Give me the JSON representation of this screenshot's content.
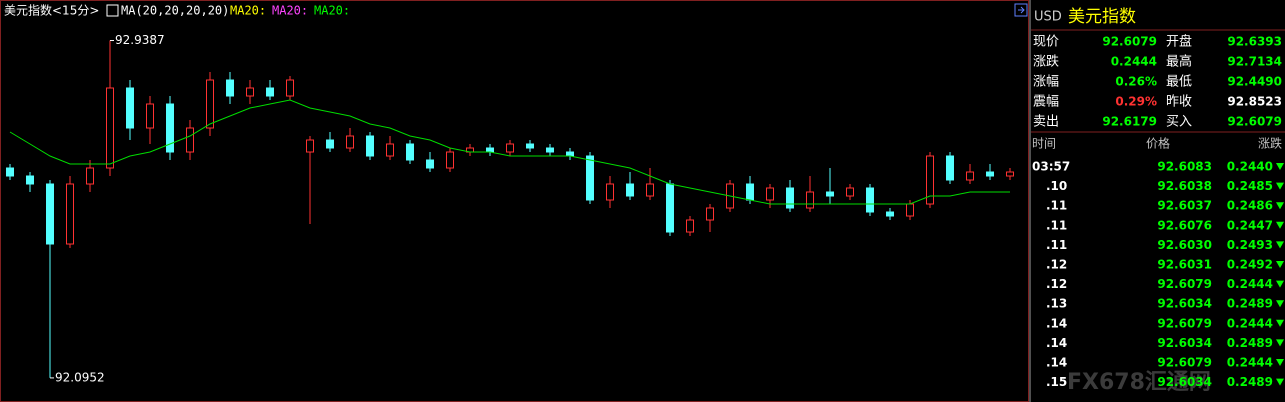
{
  "header": {
    "title": "美元指数<15分>",
    "indicator": "MA(20,20,20,20)",
    "ma_labels": [
      {
        "text": "MA20:",
        "color": "#ffff00"
      },
      {
        "text": "MA20:",
        "color": "#ff44ff"
      },
      {
        "text": "MA20:",
        "color": "#00ff00"
      }
    ]
  },
  "chart_data": {
    "type": "candlestick",
    "open": [
      92.62,
      92.6,
      92.58,
      92.43,
      92.58,
      92.62,
      92.82,
      92.72,
      92.78,
      92.66,
      92.72,
      92.84,
      92.8,
      92.82,
      92.8,
      92.66,
      92.69,
      92.67,
      92.7,
      92.65,
      92.68,
      92.64,
      92.62,
      92.66,
      92.67,
      92.66,
      92.68,
      92.67,
      92.66,
      92.65,
      92.54,
      92.58,
      92.55,
      92.58,
      92.46,
      92.49,
      92.52,
      92.58,
      92.54,
      92.57,
      92.52,
      92.56,
      92.55,
      92.57,
      92.51,
      92.5,
      92.53,
      92.65,
      92.59,
      92.61,
      92.6
    ],
    "high": [
      92.63,
      92.61,
      92.59,
      92.6,
      92.64,
      92.9387,
      92.84,
      92.8,
      92.8,
      92.74,
      92.86,
      92.86,
      92.84,
      92.84,
      92.85,
      92.7,
      92.71,
      92.72,
      92.71,
      92.7,
      92.69,
      92.66,
      92.67,
      92.68,
      92.68,
      92.69,
      92.69,
      92.68,
      92.67,
      92.66,
      92.6,
      92.61,
      92.62,
      92.59,
      92.5,
      92.53,
      92.59,
      92.6,
      92.58,
      92.59,
      92.6,
      92.62,
      92.58,
      92.58,
      92.52,
      92.54,
      92.66,
      92.66,
      92.63,
      92.63,
      92.62
    ],
    "low": [
      92.59,
      92.56,
      92.0952,
      92.42,
      92.56,
      92.6,
      92.69,
      92.68,
      92.64,
      92.64,
      92.7,
      92.78,
      92.78,
      92.79,
      92.79,
      92.48,
      92.66,
      92.66,
      92.64,
      92.64,
      92.63,
      92.61,
      92.61,
      92.65,
      92.65,
      92.65,
      92.66,
      92.65,
      92.64,
      92.53,
      92.52,
      92.54,
      92.54,
      92.45,
      92.45,
      92.46,
      92.51,
      92.53,
      92.52,
      92.51,
      92.51,
      92.53,
      92.54,
      92.5,
      92.49,
      92.49,
      92.52,
      92.58,
      92.58,
      92.59,
      92.59
    ],
    "close": [
      92.6,
      92.58,
      92.43,
      92.58,
      92.62,
      92.82,
      92.72,
      92.78,
      92.66,
      92.72,
      92.84,
      92.8,
      92.82,
      92.8,
      92.84,
      92.69,
      92.67,
      92.7,
      92.65,
      92.68,
      92.64,
      92.62,
      92.66,
      92.67,
      92.66,
      92.68,
      92.67,
      92.66,
      92.65,
      92.54,
      92.58,
      92.55,
      92.58,
      92.46,
      92.49,
      92.52,
      92.58,
      92.54,
      92.57,
      92.52,
      92.56,
      92.55,
      92.57,
      92.51,
      92.5,
      92.53,
      92.65,
      92.59,
      92.61,
      92.6,
      92.61
    ],
    "ma": [
      92.71,
      92.68,
      92.65,
      92.63,
      92.63,
      92.63,
      92.65,
      92.66,
      92.68,
      92.7,
      92.73,
      92.75,
      92.77,
      92.78,
      92.79,
      92.77,
      92.76,
      92.75,
      92.73,
      92.72,
      92.7,
      92.69,
      92.67,
      92.66,
      92.66,
      92.65,
      92.65,
      92.65,
      92.65,
      92.64,
      92.63,
      92.62,
      92.6,
      92.58,
      92.57,
      92.56,
      92.55,
      92.54,
      92.53,
      92.53,
      92.53,
      92.53,
      92.53,
      92.53,
      92.53,
      92.53,
      92.55,
      92.55,
      92.56,
      92.56,
      92.56
    ],
    "ma_color": "#00dd00",
    "up_color": "#ff3232",
    "down_color": "#54ffff",
    "high_label": "92.9387",
    "low_label": "92.0952",
    "high_index": 5,
    "low_index": 2,
    "ylim": [
      92.04,
      93.04
    ]
  },
  "quote": {
    "title_code": "USD",
    "title_name": "美元指数",
    "rows": [
      [
        "现价",
        "92.6079",
        "开盘",
        "92.6393"
      ],
      [
        "涨跌",
        "0.2444",
        "最高",
        "92.7134"
      ],
      [
        "涨幅",
        "0.26%",
        "最低",
        "92.4490"
      ],
      [
        "震幅",
        "0.29%",
        "昨收",
        "92.8523"
      ],
      [
        "卖出",
        "92.6179",
        "买入",
        "92.6079"
      ]
    ]
  },
  "ticks": {
    "headers": [
      "时间",
      "价格",
      "涨跌"
    ],
    "rows": [
      [
        "03:57",
        "92.6083",
        "0.2440"
      ],
      [
        ".10",
        "92.6038",
        "0.2485"
      ],
      [
        ".11",
        "92.6037",
        "0.2486"
      ],
      [
        ".11",
        "92.6076",
        "0.2447"
      ],
      [
        ".11",
        "92.6030",
        "0.2493"
      ],
      [
        ".12",
        "92.6031",
        "0.2492"
      ],
      [
        ".12",
        "92.6079",
        "0.2444"
      ],
      [
        ".13",
        "92.6034",
        "0.2489"
      ],
      [
        ".14",
        "92.6079",
        "0.2444"
      ],
      [
        ".14",
        "92.6034",
        "0.2489"
      ],
      [
        ".14",
        "92.6079",
        "0.2444"
      ],
      [
        ".15",
        "92.6034",
        "0.2489"
      ]
    ]
  },
  "watermark": "FX678汇通网"
}
